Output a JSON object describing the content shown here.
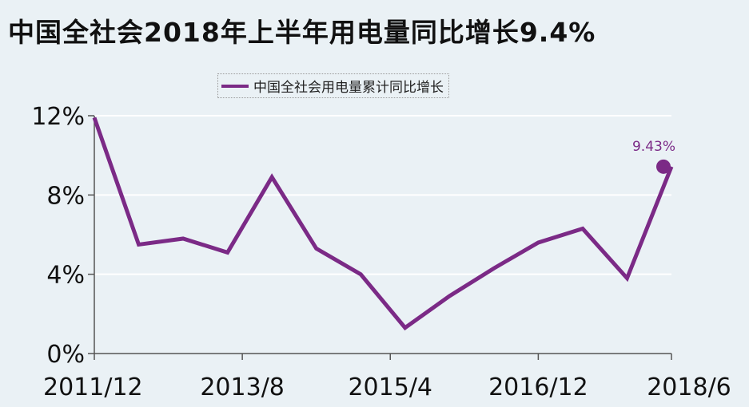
{
  "title": "中国全社会2018年上半年用电量同比增长9.4%",
  "legend": {
    "label": "中国全社会用电量累计同比增长"
  },
  "colors": {
    "series": "#7b2a86",
    "background": "#eaf1f5",
    "grid": "#ffffff",
    "axis": "#555555"
  },
  "chart_data": {
    "type": "line",
    "title": "中国全社会2018年上半年用电量同比增长9.4%",
    "xlabel": "",
    "ylabel": "",
    "ylim": [
      0,
      12
    ],
    "y_ticks": [
      "0%",
      "4%",
      "8%",
      "12%"
    ],
    "y_tick_values": [
      0,
      4,
      8,
      12
    ],
    "x_tick_labels": [
      "2011/12",
      "2013/8",
      "2015/4",
      "2016/12",
      "2018/6"
    ],
    "x_tick_positions": [
      0,
      10,
      20,
      30,
      39
    ],
    "grid": true,
    "legend_position": "top-center",
    "series": [
      {
        "name": "中国全社会用电量累计同比增长",
        "x": [
          0,
          3,
          6,
          9,
          12,
          15,
          18,
          21,
          24,
          27,
          30,
          33,
          36,
          39
        ],
        "values": [
          11.9,
          5.5,
          5.8,
          5.1,
          8.9,
          5.3,
          4.0,
          1.3,
          2.9,
          4.3,
          5.6,
          6.3,
          3.8,
          9.43
        ]
      }
    ],
    "annotation": {
      "text": "9.43%",
      "value": 9.43
    }
  }
}
